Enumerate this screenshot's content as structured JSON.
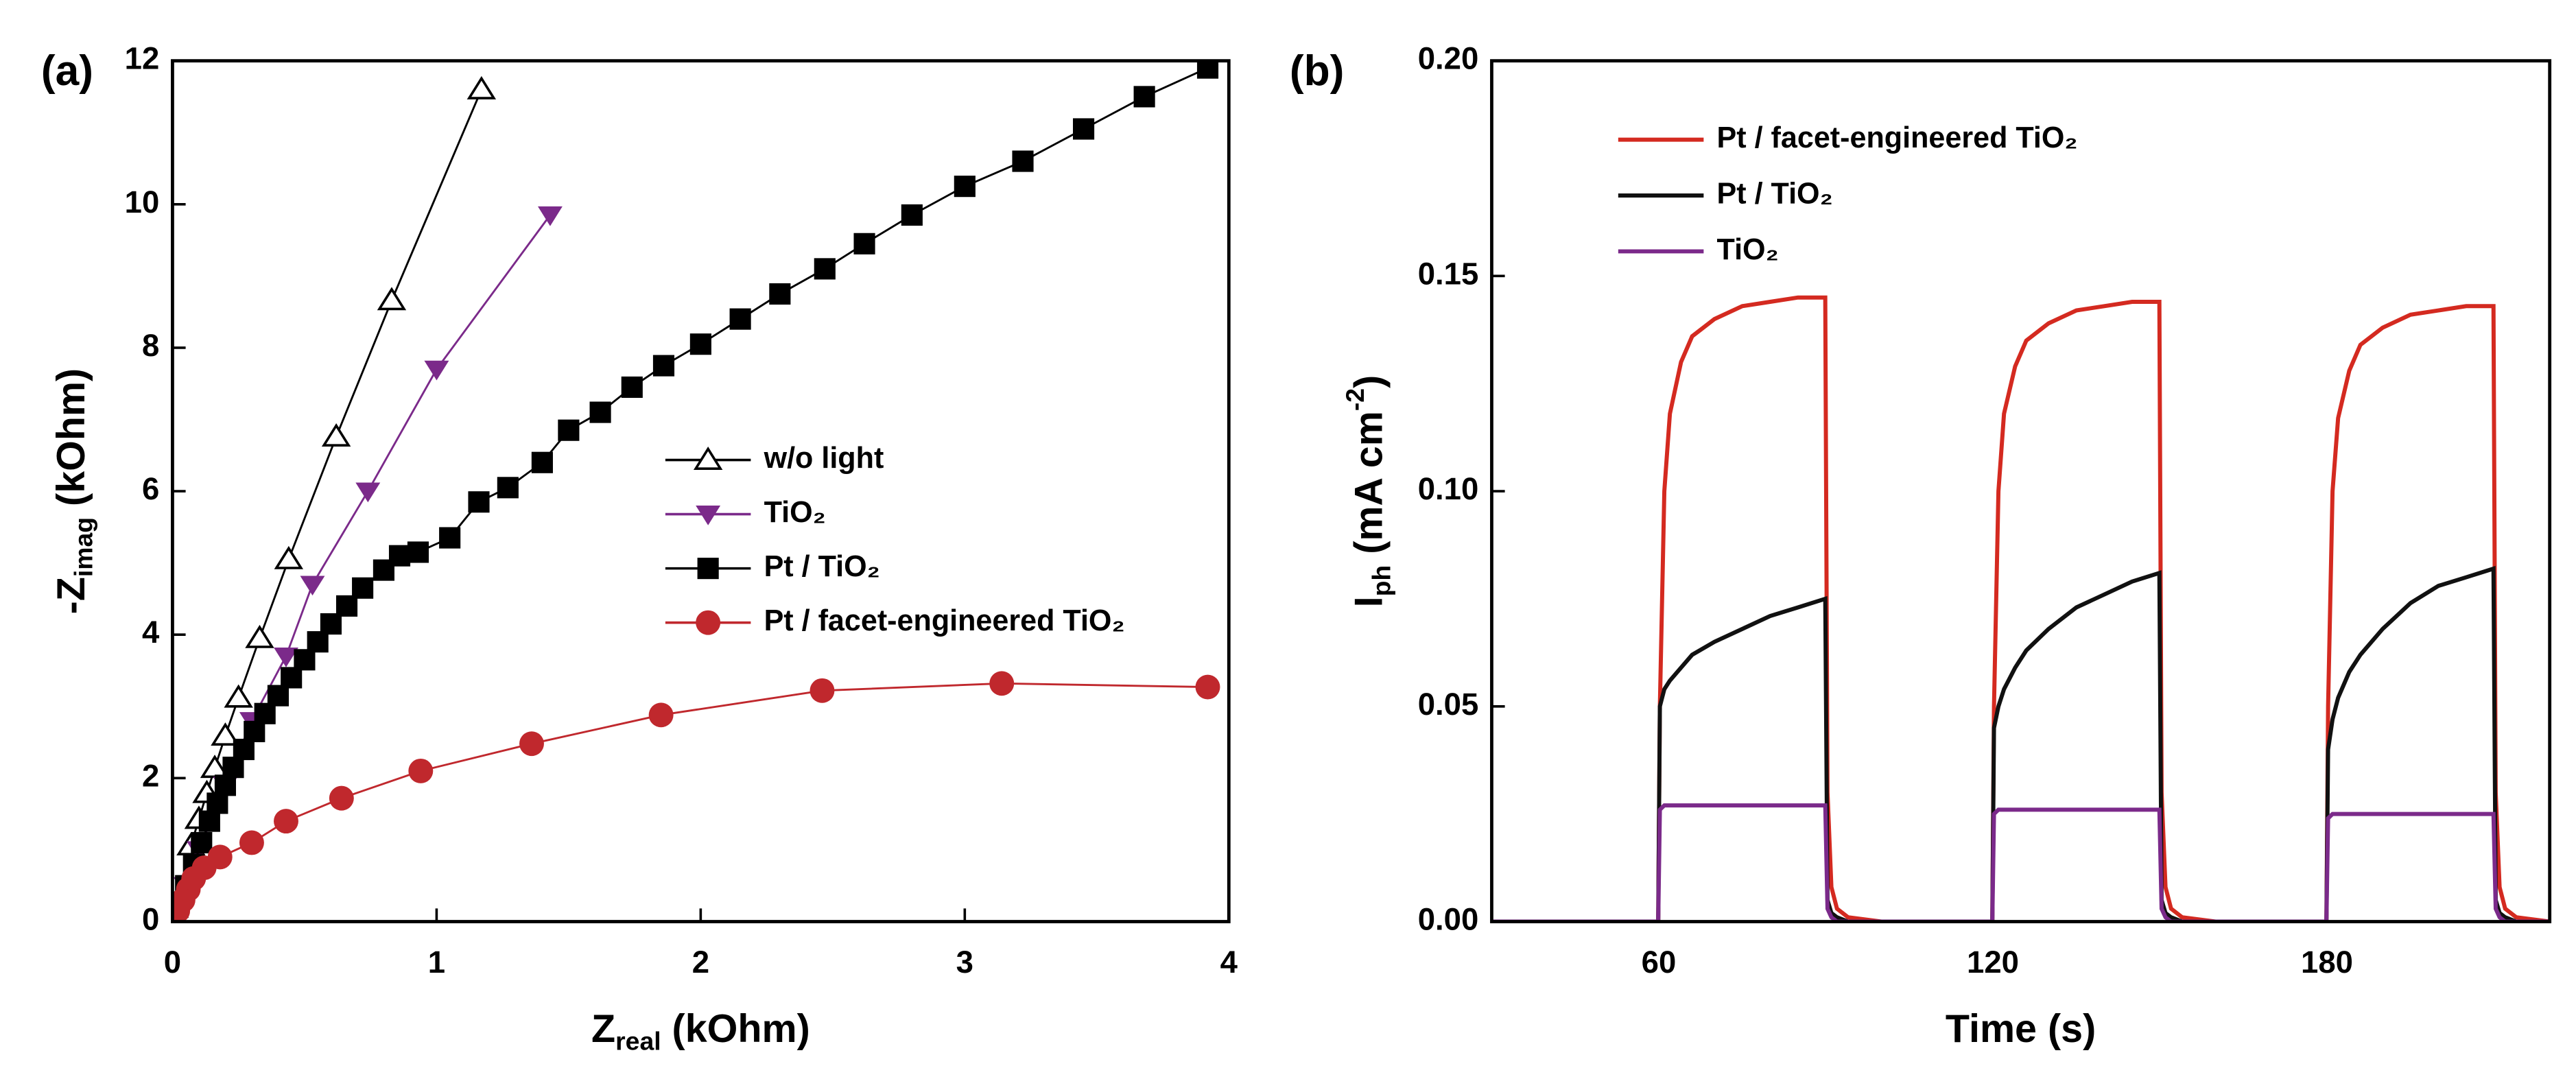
{
  "chart_data": [
    {
      "type": "scatter",
      "panel_label": "(a)",
      "x_label": [
        {
          "text": "Z"
        },
        {
          "text": "real",
          "shift": "sub"
        },
        {
          "text": " (kOhm)"
        }
      ],
      "y_label": [
        {
          "text": "-Z"
        },
        {
          "text": "imag",
          "shift": "sub"
        },
        {
          "text": " (kOhm)"
        }
      ],
      "xlim": [
        0,
        4
      ],
      "ylim": [
        0,
        12
      ],
      "xticks": [
        0,
        1,
        2,
        3,
        4
      ],
      "yticks": [
        0,
        2,
        4,
        6,
        8,
        10,
        12
      ],
      "legend": "center right",
      "series": [
        {
          "name": "w/o light",
          "color": "#000000",
          "marker": "open-triangle",
          "x": [
            0,
            0.07,
            0.1,
            0.13,
            0.16,
            0.2,
            0.25,
            0.33,
            0.44,
            0.62,
            0.83,
            1.17
          ],
          "values": [
            0,
            1.06,
            1.43,
            1.79,
            2.14,
            2.59,
            3.12,
            3.95,
            5.05,
            6.76,
            8.66,
            11.6
          ]
        },
        {
          "name": "TiO₂",
          "color": "#7b2a8a",
          "marker": "triangle-down",
          "x": [
            0,
            0.05,
            0.1,
            0.2,
            0.3,
            0.43,
            0.53,
            0.74,
            1.0,
            1.43
          ],
          "values": [
            0,
            0.5,
            1.0,
            1.9,
            2.8,
            3.7,
            4.7,
            6.0,
            7.7,
            9.85
          ]
        },
        {
          "name": "Pt / TiO₂",
          "color": "#000000",
          "marker": "square",
          "x": [
            0,
            0.02,
            0.05,
            0.08,
            0.11,
            0.14,
            0.17,
            0.2,
            0.23,
            0.27,
            0.31,
            0.35,
            0.4,
            0.45,
            0.5,
            0.55,
            0.6,
            0.66,
            0.72,
            0.8,
            0.86,
            0.93,
            1.05,
            1.16,
            1.27,
            1.4,
            1.5,
            1.62,
            1.74,
            1.86,
            2.0,
            2.15,
            2.3,
            2.47,
            2.62,
            2.8,
            3.0,
            3.22,
            3.45,
            3.68,
            3.92
          ],
          "values": [
            0,
            0.2,
            0.5,
            0.8,
            1.1,
            1.4,
            1.65,
            1.9,
            2.15,
            2.4,
            2.65,
            2.9,
            3.15,
            3.4,
            3.65,
            3.9,
            4.15,
            4.4,
            4.65,
            4.9,
            5.1,
            5.15,
            5.35,
            5.85,
            6.05,
            6.4,
            6.85,
            7.1,
            7.45,
            7.75,
            8.05,
            8.4,
            8.75,
            9.1,
            9.45,
            9.85,
            10.25,
            10.6,
            11.05,
            11.5,
            11.9
          ]
        },
        {
          "name": "Pt / facet-engineered TiO₂",
          "color": "#c0282d",
          "marker": "circle",
          "x": [
            0,
            0.02,
            0.04,
            0.06,
            0.08,
            0.12,
            0.18,
            0.3,
            0.43,
            0.64,
            0.94,
            1.36,
            1.85,
            2.46,
            3.14,
            3.92
          ],
          "values": [
            0,
            0.15,
            0.3,
            0.45,
            0.6,
            0.75,
            0.9,
            1.1,
            1.4,
            1.72,
            2.1,
            2.48,
            2.88,
            3.22,
            3.32,
            3.27
          ]
        }
      ]
    },
    {
      "type": "line",
      "panel_label": "(b)",
      "x_label": [
        {
          "text": "Time (s)"
        }
      ],
      "y_label": [
        {
          "text": "I"
        },
        {
          "text": "ph",
          "shift": "sub"
        },
        {
          "text": " (mA cm"
        },
        {
          "text": "-2",
          "shift": "sup"
        },
        {
          "text": ")"
        }
      ],
      "xlim": [
        30,
        220
      ],
      "ylim": [
        0,
        0.2
      ],
      "xticks": [
        60,
        120,
        180
      ],
      "yticks": [
        {
          "value": 0,
          "label": "0.00"
        },
        {
          "value": 0.05,
          "label": "0.05"
        },
        {
          "value": 0.1,
          "label": "0.10"
        },
        {
          "value": 0.15,
          "label": "0.15"
        },
        {
          "value": 0.2,
          "label": "0.20"
        }
      ],
      "legend": "upper left",
      "x": [
        30,
        59.9,
        60.2,
        61,
        62,
        64,
        66,
        70,
        75,
        80,
        85,
        89.9,
        90.3,
        91,
        92,
        94,
        100,
        119.9,
        120.2,
        121,
        122,
        124,
        126,
        130,
        135,
        140,
        145,
        149.9,
        150.3,
        151,
        152,
        154,
        160,
        179.9,
        180.2,
        181,
        182,
        184,
        186,
        190,
        195,
        200,
        205,
        209.9,
        210.3,
        211,
        212,
        214,
        220
      ],
      "series": [
        {
          "name": "Pt / facet-engineered TiO₂",
          "color": "#d42a20",
          "values": [
            0,
            0,
            0.05,
            0.1,
            0.118,
            0.13,
            0.136,
            0.14,
            0.143,
            0.144,
            0.145,
            0.145,
            0.03,
            0.008,
            0.003,
            0.001,
            0,
            0,
            0.05,
            0.1,
            0.118,
            0.129,
            0.135,
            0.139,
            0.142,
            0.143,
            0.144,
            0.144,
            0.03,
            0.008,
            0.003,
            0.001,
            0,
            0,
            0.05,
            0.1,
            0.117,
            0.128,
            0.134,
            0.138,
            0.141,
            0.142,
            0.143,
            0.143,
            0.03,
            0.008,
            0.003,
            0.001,
            0
          ]
        },
        {
          "name": "Pt / TiO₂",
          "color": "#111111",
          "values": [
            0,
            0,
            0.05,
            0.054,
            0.056,
            0.059,
            0.062,
            0.065,
            0.068,
            0.071,
            0.073,
            0.075,
            0.005,
            0.002,
            0.001,
            0,
            0,
            0,
            0.045,
            0.05,
            0.054,
            0.059,
            0.063,
            0.068,
            0.073,
            0.076,
            0.079,
            0.081,
            0.005,
            0.002,
            0.001,
            0,
            0,
            0,
            0.04,
            0.047,
            0.052,
            0.058,
            0.062,
            0.068,
            0.074,
            0.078,
            0.08,
            0.082,
            0.005,
            0.002,
            0.001,
            0,
            0
          ]
        },
        {
          "name": "TiO₂",
          "color": "#7b2a8a",
          "values": [
            0,
            0,
            0.026,
            0.027,
            0.027,
            0.027,
            0.027,
            0.027,
            0.027,
            0.027,
            0.027,
            0.027,
            0.003,
            0.001,
            0,
            0,
            0,
            0,
            0.025,
            0.026,
            0.026,
            0.026,
            0.026,
            0.026,
            0.026,
            0.026,
            0.026,
            0.026,
            0.003,
            0.001,
            0,
            0,
            0,
            0,
            0.024,
            0.025,
            0.025,
            0.025,
            0.025,
            0.025,
            0.025,
            0.025,
            0.025,
            0.025,
            0.003,
            0.001,
            0,
            0,
            0
          ]
        }
      ]
    }
  ]
}
